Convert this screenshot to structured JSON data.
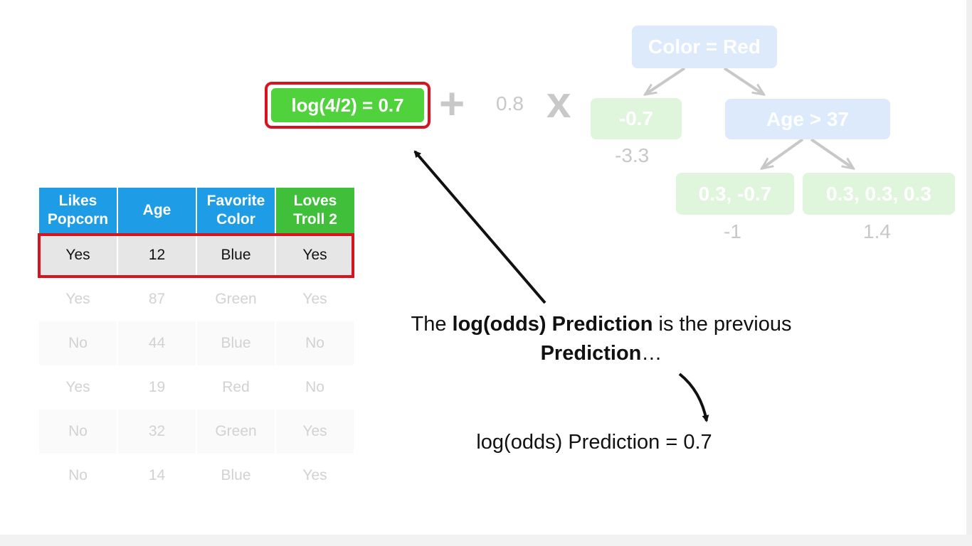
{
  "formula": {
    "text": "log(4/2) = 0.7"
  },
  "learning_rate": "0.8",
  "plus_symbol": "+",
  "times_symbol": "x",
  "tree": {
    "root": "Color = Red",
    "left_leaf": {
      "residuals": "-0.7",
      "output": "-3.3"
    },
    "split": "Age > 37",
    "mid_leaf": {
      "residuals": "0.3, -0.7",
      "output": "-1"
    },
    "right_leaf": {
      "residuals": "0.3, 0.3, 0.3",
      "output": "1.4"
    }
  },
  "table": {
    "headers": [
      {
        "line1": "Likes",
        "line2": "Popcorn"
      },
      {
        "line1": "Age",
        "line2": ""
      },
      {
        "line1": "Favorite",
        "line2": "Color"
      },
      {
        "line1": "Loves",
        "line2": "Troll 2"
      }
    ],
    "rows": [
      [
        "Yes",
        "12",
        "Blue",
        "Yes"
      ],
      [
        "Yes",
        "87",
        "Green",
        "Yes"
      ],
      [
        "No",
        "44",
        "Blue",
        "No"
      ],
      [
        "Yes",
        "19",
        "Red",
        "No"
      ],
      [
        "No",
        "32",
        "Green",
        "Yes"
      ],
      [
        "No",
        "14",
        "Blue",
        "Yes"
      ]
    ]
  },
  "explanation": {
    "part1": "The ",
    "bold1": "log(odds) Prediction",
    "part2": " is the previous ",
    "bold2": "Prediction",
    "part3": "…"
  },
  "result": "log(odds) Prediction = 0.7",
  "colors": {
    "highlight_red": "#d8121f",
    "formula_green": "#4fd23c",
    "header_blue": "#1e9ce6",
    "header_green": "#3fbf3a"
  }
}
